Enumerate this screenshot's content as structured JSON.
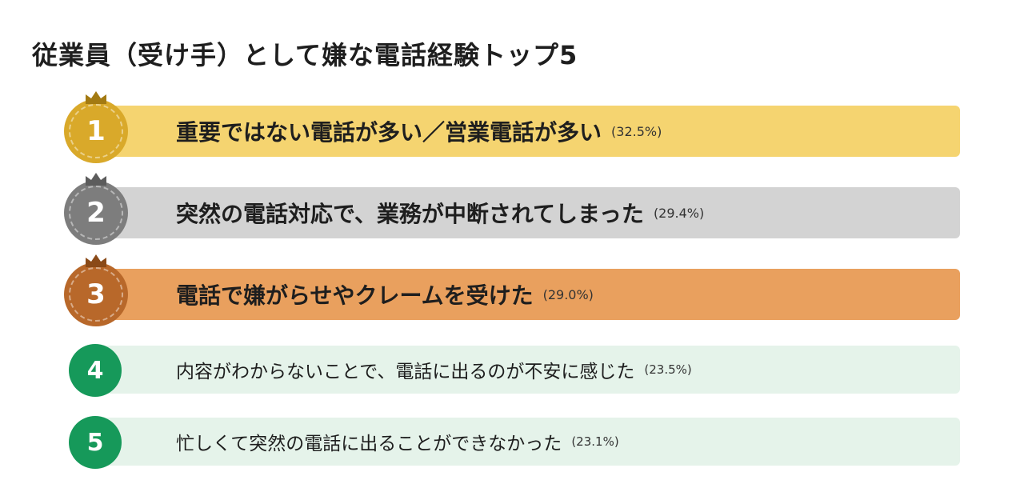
{
  "title": "従業員（受け手）として嫌な電話経験トップ5",
  "items": [
    {
      "rank": "1",
      "text": "重要ではない電話が多い／営業電話が多い",
      "percent": "(32.5%)",
      "bar_color": "#f5d470",
      "badge_color": "#d9a92a",
      "crown_color": "#a37a12"
    },
    {
      "rank": "2",
      "text": "突然の電話対応で、業務が中断されてしまった",
      "percent": "(29.4%)",
      "bar_color": "#d3d3d3",
      "badge_color": "#7d7d7d",
      "crown_color": "#5c5c5c"
    },
    {
      "rank": "3",
      "text": "電話で嫌がらせやクレームを受けた",
      "percent": "(29.0%)",
      "bar_color": "#e9a05e",
      "badge_color": "#b8682a",
      "crown_color": "#8a4a18"
    },
    {
      "rank": "4",
      "text": "内容がわからないことで、電話に出るのが不安に感じた",
      "percent": "(23.5%)",
      "bar_color": "#e5f3ea",
      "badge_color": "#16995a"
    },
    {
      "rank": "5",
      "text": "忙しくて突然の電話に出ることができなかった",
      "percent": "(23.1%)",
      "bar_color": "#e5f3ea",
      "badge_color": "#16995a"
    }
  ]
}
